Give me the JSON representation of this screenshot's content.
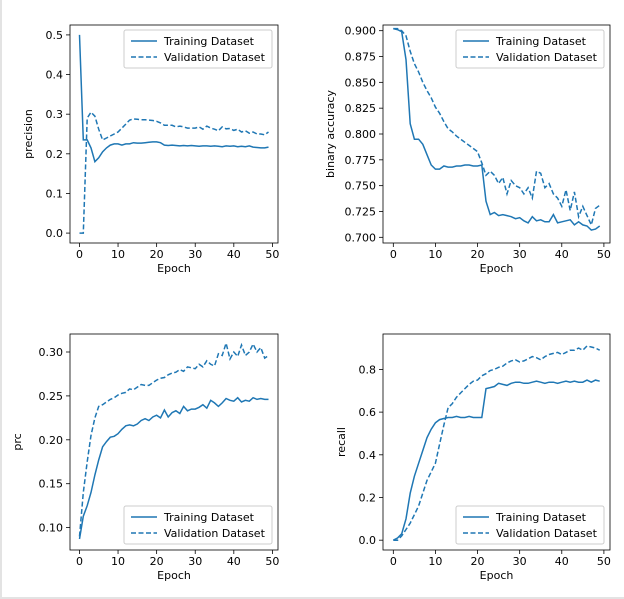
{
  "chart_data": [
    {
      "type": "line",
      "xlabel": "Epoch",
      "ylabel": "precision",
      "xlim": [
        -2.45,
        51.45
      ],
      "ylim": [
        -0.025,
        0.525
      ],
      "xticks": [
        0,
        10,
        20,
        30,
        40,
        50
      ],
      "yticks": [
        0.0,
        0.1,
        0.2,
        0.3,
        0.4,
        0.5
      ],
      "ytick_labels": [
        "0.0",
        "0.1",
        "0.2",
        "0.3",
        "0.4",
        "0.5"
      ],
      "legend_position": "top-right",
      "series": [
        {
          "name": "Training Dataset",
          "style": "solid",
          "x": [
            0,
            1,
            2,
            3,
            4,
            5,
            6,
            7,
            8,
            9,
            10,
            11,
            12,
            13,
            14,
            15,
            16,
            17,
            18,
            19,
            20,
            21,
            22,
            23,
            24,
            25,
            26,
            27,
            28,
            29,
            30,
            31,
            32,
            33,
            34,
            35,
            36,
            37,
            38,
            39,
            40,
            41,
            42,
            43,
            44,
            45,
            46,
            47,
            48,
            49
          ],
          "y": [
            0.5,
            0.235,
            0.235,
            0.215,
            0.18,
            0.19,
            0.205,
            0.215,
            0.222,
            0.225,
            0.225,
            0.222,
            0.225,
            0.225,
            0.228,
            0.227,
            0.227,
            0.228,
            0.229,
            0.23,
            0.23,
            0.228,
            0.222,
            0.221,
            0.222,
            0.221,
            0.22,
            0.221,
            0.22,
            0.221,
            0.22,
            0.219,
            0.22,
            0.22,
            0.219,
            0.22,
            0.219,
            0.218,
            0.22,
            0.219,
            0.22,
            0.218,
            0.219,
            0.218,
            0.22,
            0.217,
            0.216,
            0.215,
            0.215,
            0.217
          ]
        },
        {
          "name": "Validation Dataset",
          "style": "dashed",
          "x": [
            0,
            1,
            2,
            3,
            4,
            5,
            6,
            7,
            8,
            9,
            10,
            11,
            12,
            13,
            14,
            15,
            16,
            17,
            18,
            19,
            20,
            21,
            22,
            23,
            24,
            25,
            26,
            27,
            28,
            29,
            30,
            31,
            32,
            33,
            34,
            35,
            36,
            37,
            38,
            39,
            40,
            41,
            42,
            43,
            44,
            45,
            46,
            47,
            48,
            49
          ],
          "y": [
            0.0,
            0.0,
            0.29,
            0.305,
            0.295,
            0.262,
            0.235,
            0.24,
            0.245,
            0.25,
            0.255,
            0.265,
            0.275,
            0.285,
            0.288,
            0.287,
            0.286,
            0.286,
            0.285,
            0.284,
            0.282,
            0.278,
            0.272,
            0.272,
            0.272,
            0.268,
            0.27,
            0.268,
            0.265,
            0.265,
            0.265,
            0.268,
            0.262,
            0.27,
            0.265,
            0.262,
            0.258,
            0.268,
            0.263,
            0.264,
            0.259,
            0.262,
            0.255,
            0.258,
            0.252,
            0.255,
            0.25,
            0.25,
            0.248,
            0.255
          ]
        }
      ]
    },
    {
      "type": "line",
      "xlabel": "Epoch",
      "ylabel": "binary accuracy",
      "xlim": [
        -2.45,
        51.45
      ],
      "ylim": [
        0.6945,
        0.9055
      ],
      "xticks": [
        0,
        10,
        20,
        30,
        40,
        50
      ],
      "yticks": [
        0.7,
        0.725,
        0.75,
        0.775,
        0.8,
        0.825,
        0.85,
        0.875,
        0.9
      ],
      "ytick_labels": [
        "0.700",
        "0.725",
        "0.750",
        "0.775",
        "0.800",
        "0.825",
        "0.850",
        "0.875",
        "0.900"
      ],
      "legend_position": "top-right",
      "series": [
        {
          "name": "Training Dataset",
          "style": "solid",
          "x": [
            0,
            1,
            2,
            3,
            4,
            5,
            6,
            7,
            8,
            9,
            10,
            11,
            12,
            13,
            14,
            15,
            16,
            17,
            18,
            19,
            20,
            21,
            22,
            23,
            24,
            25,
            26,
            27,
            28,
            29,
            30,
            31,
            32,
            33,
            34,
            35,
            36,
            37,
            38,
            39,
            40,
            41,
            42,
            43,
            44,
            45,
            46,
            47,
            48,
            49
          ],
          "y": [
            0.902,
            0.901,
            0.899,
            0.872,
            0.81,
            0.795,
            0.795,
            0.79,
            0.78,
            0.77,
            0.766,
            0.766,
            0.769,
            0.768,
            0.768,
            0.769,
            0.769,
            0.77,
            0.77,
            0.769,
            0.769,
            0.77,
            0.735,
            0.722,
            0.724,
            0.721,
            0.722,
            0.721,
            0.72,
            0.718,
            0.719,
            0.716,
            0.714,
            0.72,
            0.716,
            0.717,
            0.715,
            0.715,
            0.722,
            0.714,
            0.715,
            0.716,
            0.717,
            0.712,
            0.715,
            0.712,
            0.711,
            0.707,
            0.708,
            0.711
          ]
        },
        {
          "name": "Validation Dataset",
          "style": "dashed",
          "x": [
            0,
            1,
            2,
            3,
            4,
            5,
            6,
            7,
            8,
            9,
            10,
            11,
            12,
            13,
            14,
            15,
            16,
            17,
            18,
            19,
            20,
            21,
            22,
            23,
            24,
            25,
            26,
            27,
            28,
            29,
            30,
            31,
            32,
            33,
            34,
            35,
            36,
            37,
            38,
            39,
            40,
            41,
            42,
            43,
            44,
            45,
            46,
            47,
            48,
            49
          ],
          "y": [
            0.902,
            0.902,
            0.9,
            0.895,
            0.88,
            0.868,
            0.86,
            0.85,
            0.842,
            0.835,
            0.826,
            0.82,
            0.812,
            0.805,
            0.802,
            0.798,
            0.795,
            0.792,
            0.789,
            0.786,
            0.783,
            0.772,
            0.76,
            0.764,
            0.76,
            0.752,
            0.758,
            0.742,
            0.755,
            0.75,
            0.748,
            0.742,
            0.748,
            0.738,
            0.764,
            0.762,
            0.748,
            0.752,
            0.742,
            0.738,
            0.73,
            0.746,
            0.726,
            0.744,
            0.72,
            0.73,
            0.721,
            0.712,
            0.728,
            0.731
          ]
        }
      ]
    },
    {
      "type": "line",
      "xlabel": "Epoch",
      "ylabel": "prc",
      "xlim": [
        -2.45,
        51.45
      ],
      "ylim": [
        0.0745,
        0.3205
      ],
      "xticks": [
        0,
        10,
        20,
        30,
        40,
        50
      ],
      "yticks": [
        0.1,
        0.15,
        0.2,
        0.25,
        0.3
      ],
      "ytick_labels": [
        "0.10",
        "0.15",
        "0.20",
        "0.25",
        "0.30"
      ],
      "legend_position": "bottom-right",
      "series": [
        {
          "name": "Training Dataset",
          "style": "solid",
          "x": [
            0,
            1,
            2,
            3,
            4,
            5,
            6,
            7,
            8,
            9,
            10,
            11,
            12,
            13,
            14,
            15,
            16,
            17,
            18,
            19,
            20,
            21,
            22,
            23,
            24,
            25,
            26,
            27,
            28,
            29,
            30,
            31,
            32,
            33,
            34,
            35,
            36,
            37,
            38,
            39,
            40,
            41,
            42,
            43,
            44,
            45,
            46,
            47,
            48,
            49
          ],
          "y": [
            0.087,
            0.113,
            0.125,
            0.14,
            0.16,
            0.177,
            0.192,
            0.198,
            0.203,
            0.204,
            0.207,
            0.212,
            0.216,
            0.217,
            0.216,
            0.218,
            0.222,
            0.224,
            0.222,
            0.226,
            0.228,
            0.225,
            0.234,
            0.226,
            0.231,
            0.233,
            0.23,
            0.238,
            0.233,
            0.235,
            0.235,
            0.237,
            0.24,
            0.236,
            0.245,
            0.242,
            0.238,
            0.242,
            0.247,
            0.245,
            0.244,
            0.248,
            0.243,
            0.245,
            0.244,
            0.248,
            0.246,
            0.247,
            0.246,
            0.246
          ]
        },
        {
          "name": "Validation Dataset",
          "style": "dashed",
          "x": [
            0,
            1,
            2,
            3,
            4,
            5,
            6,
            7,
            8,
            9,
            10,
            11,
            12,
            13,
            14,
            15,
            16,
            17,
            18,
            19,
            20,
            21,
            22,
            23,
            24,
            25,
            26,
            27,
            28,
            29,
            30,
            31,
            32,
            33,
            34,
            35,
            36,
            37,
            38,
            39,
            40,
            41,
            42,
            43,
            44,
            45,
            46,
            47,
            48,
            49
          ],
          "y": [
            0.09,
            0.14,
            0.175,
            0.205,
            0.225,
            0.238,
            0.24,
            0.243,
            0.246,
            0.248,
            0.251,
            0.253,
            0.254,
            0.258,
            0.257,
            0.26,
            0.263,
            0.262,
            0.262,
            0.265,
            0.268,
            0.27,
            0.271,
            0.274,
            0.276,
            0.277,
            0.28,
            0.278,
            0.283,
            0.282,
            0.281,
            0.286,
            0.283,
            0.29,
            0.286,
            0.284,
            0.298,
            0.296,
            0.31,
            0.292,
            0.3,
            0.295,
            0.308,
            0.296,
            0.3,
            0.309,
            0.3,
            0.305,
            0.293,
            0.296
          ]
        }
      ]
    },
    {
      "type": "line",
      "xlabel": "Epoch",
      "ylabel": "recall",
      "xlim": [
        -2.45,
        51.45
      ],
      "ylim": [
        -0.046,
        0.966
      ],
      "xticks": [
        0,
        10,
        20,
        30,
        40,
        50
      ],
      "yticks": [
        0.0,
        0.2,
        0.4,
        0.6,
        0.8
      ],
      "ytick_labels": [
        "0.0",
        "0.2",
        "0.4",
        "0.6",
        "0.8"
      ],
      "legend_position": "bottom-right",
      "series": [
        {
          "name": "Training Dataset",
          "style": "solid",
          "x": [
            0,
            1,
            2,
            3,
            4,
            5,
            6,
            7,
            8,
            9,
            10,
            11,
            12,
            13,
            14,
            15,
            16,
            17,
            18,
            19,
            20,
            21,
            22,
            23,
            24,
            25,
            26,
            27,
            28,
            29,
            30,
            31,
            32,
            33,
            34,
            35,
            36,
            37,
            38,
            39,
            40,
            41,
            42,
            43,
            44,
            45,
            46,
            47,
            48,
            49
          ],
          "y": [
            0.0,
            0.01,
            0.03,
            0.1,
            0.22,
            0.3,
            0.36,
            0.42,
            0.48,
            0.52,
            0.55,
            0.565,
            0.57,
            0.575,
            0.575,
            0.58,
            0.575,
            0.575,
            0.58,
            0.575,
            0.575,
            0.575,
            0.71,
            0.715,
            0.72,
            0.735,
            0.73,
            0.725,
            0.735,
            0.74,
            0.74,
            0.735,
            0.735,
            0.74,
            0.745,
            0.74,
            0.735,
            0.74,
            0.74,
            0.735,
            0.74,
            0.745,
            0.74,
            0.745,
            0.74,
            0.74,
            0.75,
            0.74,
            0.75,
            0.745
          ]
        },
        {
          "name": "Validation Dataset",
          "style": "dashed",
          "x": [
            0,
            1,
            2,
            3,
            4,
            5,
            6,
            7,
            8,
            9,
            10,
            11,
            12,
            13,
            14,
            15,
            16,
            17,
            18,
            19,
            20,
            21,
            22,
            23,
            24,
            25,
            26,
            27,
            28,
            29,
            30,
            31,
            32,
            33,
            34,
            35,
            36,
            37,
            38,
            39,
            40,
            41,
            42,
            43,
            44,
            45,
            46,
            47,
            48,
            49
          ],
          "y": [
            0.0,
            0.0,
            0.02,
            0.05,
            0.08,
            0.12,
            0.16,
            0.22,
            0.28,
            0.32,
            0.36,
            0.45,
            0.54,
            0.62,
            0.64,
            0.67,
            0.69,
            0.71,
            0.73,
            0.745,
            0.75,
            0.77,
            0.78,
            0.795,
            0.8,
            0.81,
            0.815,
            0.83,
            0.84,
            0.845,
            0.835,
            0.84,
            0.85,
            0.86,
            0.855,
            0.845,
            0.86,
            0.87,
            0.875,
            0.88,
            0.87,
            0.88,
            0.89,
            0.89,
            0.9,
            0.89,
            0.91,
            0.905,
            0.9,
            0.89
          ]
        }
      ]
    }
  ],
  "legend": {
    "training": "Training Dataset",
    "validation": "Validation Dataset"
  },
  "colors": {
    "line": "#1f77b4",
    "axes": "#000000",
    "legend_border": "#cccccc",
    "background": "#ffffff"
  }
}
